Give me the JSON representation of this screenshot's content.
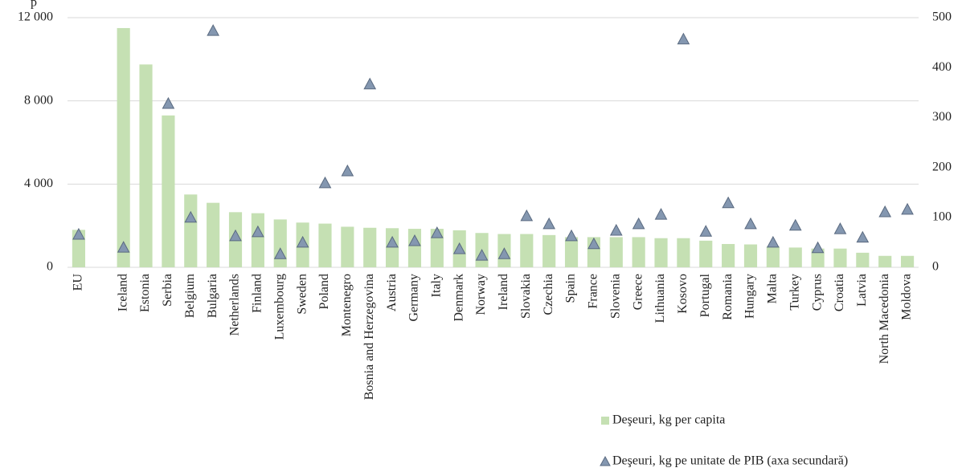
{
  "chart_data": {
    "type": "bar",
    "ylabel": "p",
    "categories": [
      "EU",
      null,
      "Iceland",
      "Estonia",
      "Serbia",
      "Belgium",
      "Bulgaria",
      "Netherlands",
      "Finland",
      "Luxembourg",
      "Sweden",
      "Poland",
      "Montenegro",
      "Bosnia and Herzegovina",
      "Austria",
      "Germany",
      "Italy",
      "Denmark",
      "Norway",
      "Ireland",
      "Slovakia",
      "Czechia",
      "Spain",
      "France",
      "Slovenia",
      "Greece",
      "Lithuania",
      "Kosovo",
      "Portugal",
      "Romania",
      "Hungary",
      "Malta",
      "Turkey",
      "Cyprus",
      "Croatia",
      "Latvia",
      "North Macedonia",
      "Moldova"
    ],
    "series": [
      {
        "name": "Deşeuri, kg per capita",
        "type": "bar",
        "color": "#c5e0b3",
        "values": [
          1800,
          null,
          11500,
          9750,
          7300,
          3500,
          3100,
          2650,
          2600,
          2300,
          2150,
          2100,
          1950,
          1900,
          1880,
          1850,
          1850,
          1780,
          1650,
          1600,
          1600,
          1550,
          1450,
          1450,
          1450,
          1450,
          1400,
          1400,
          1280,
          1120,
          1100,
          1000,
          950,
          900,
          900,
          700,
          550,
          550
        ]
      },
      {
        "name": "Deşeuri, kg pe unitate de PIB (axa secundară)",
        "type": "triangle",
        "axis": "y2",
        "color": "#8497b0",
        "values": [
          66,
          null,
          40,
          null,
          328,
          100,
          474,
          63,
          71,
          27,
          50,
          169,
          193,
          367,
          50,
          53,
          69,
          37,
          24,
          27,
          103,
          87,
          63,
          47,
          74,
          87,
          106,
          457,
          72,
          129,
          87,
          50,
          84,
          39,
          77,
          60,
          111,
          116
        ]
      }
    ],
    "ylim": [
      0,
      12000
    ],
    "yticks": [
      0,
      {
        "value": 4000,
        "label": "4 000"
      },
      {
        "value": 8000,
        "label": "8 000"
      },
      {
        "value": 12000,
        "label": "12 000"
      }
    ],
    "y2lim": [
      0,
      500
    ],
    "y2ticks": [
      0,
      100,
      200,
      300,
      400,
      500
    ],
    "grid": true,
    "legend": "bottom-right"
  }
}
